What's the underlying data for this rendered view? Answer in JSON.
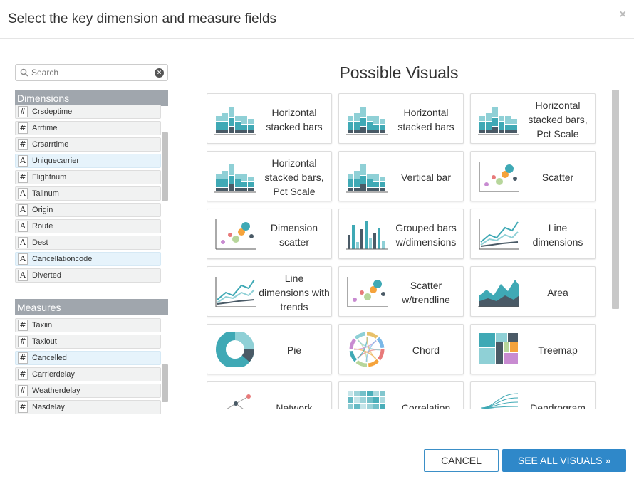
{
  "dialog": {
    "title": "Select the key dimension and measure fields",
    "close": "×"
  },
  "search": {
    "placeholder": "Search"
  },
  "dimensions": {
    "header": "Dimensions",
    "items": [
      {
        "type": "#",
        "label": "Crsdeptime"
      },
      {
        "type": "#",
        "label": "Arrtime"
      },
      {
        "type": "#",
        "label": "Crsarrtime"
      },
      {
        "type": "A",
        "label": "Uniquecarrier",
        "highlight": true
      },
      {
        "type": "#",
        "label": "Flightnum"
      },
      {
        "type": "A",
        "label": "Tailnum"
      },
      {
        "type": "A",
        "label": "Origin"
      },
      {
        "type": "A",
        "label": "Route"
      },
      {
        "type": "A",
        "label": "Dest"
      },
      {
        "type": "A",
        "label": "Cancellationcode",
        "highlight": true
      },
      {
        "type": "A",
        "label": "Diverted"
      }
    ]
  },
  "measures": {
    "header": "Measures",
    "items": [
      {
        "type": "#",
        "label": "Taxiin"
      },
      {
        "type": "#",
        "label": "Taxiout"
      },
      {
        "type": "#",
        "label": "Cancelled",
        "highlight": true
      },
      {
        "type": "#",
        "label": "Carrierdelay"
      },
      {
        "type": "#",
        "label": "Weatherdelay"
      },
      {
        "type": "#",
        "label": "Nasdelay"
      }
    ]
  },
  "visuals": {
    "title": "Possible Visuals",
    "cards": [
      {
        "label": "Horizontal stacked bars",
        "icon": "stacked-bars-icon"
      },
      {
        "label": "Horizontal stacked bars",
        "icon": "stacked-bars-icon"
      },
      {
        "label": "Horizontal stacked bars, Pct Scale",
        "icon": "stacked-bars-icon"
      },
      {
        "label": "Horizontal stacked bars, Pct Scale",
        "icon": "stacked-bars-icon"
      },
      {
        "label": "Vertical bar",
        "icon": "stacked-bars-icon"
      },
      {
        "label": "Scatter",
        "icon": "scatter-icon"
      },
      {
        "label": "Dimension scatter",
        "icon": "dimension-scatter-icon"
      },
      {
        "label": "Grouped bars w/dimensions",
        "icon": "grouped-bars-icon"
      },
      {
        "label": "Line dimensions",
        "icon": "line-chart-icon"
      },
      {
        "label": "Line dimensions with trends",
        "icon": "line-chart-icon"
      },
      {
        "label": "Scatter w/trendline",
        "icon": "scatter-icon"
      },
      {
        "label": "Area",
        "icon": "area-chart-icon"
      },
      {
        "label": "Pie",
        "icon": "pie-chart-icon"
      },
      {
        "label": "Chord",
        "icon": "chord-icon"
      },
      {
        "label": "Treemap",
        "icon": "treemap-icon"
      },
      {
        "label": "Network",
        "icon": "network-icon"
      },
      {
        "label": "Correlation",
        "icon": "correlation-icon"
      },
      {
        "label": "Dendrogram",
        "icon": "dendrogram-icon"
      }
    ]
  },
  "footer": {
    "cancel": "CANCEL",
    "see_all": "SEE ALL VISUALS »"
  },
  "colors": {
    "teal": "#3fa9b5",
    "light_teal": "#8fd0d6",
    "dark": "#4a5a66",
    "primary_button": "#2f88c9",
    "section_header": "#a0a6ad"
  }
}
